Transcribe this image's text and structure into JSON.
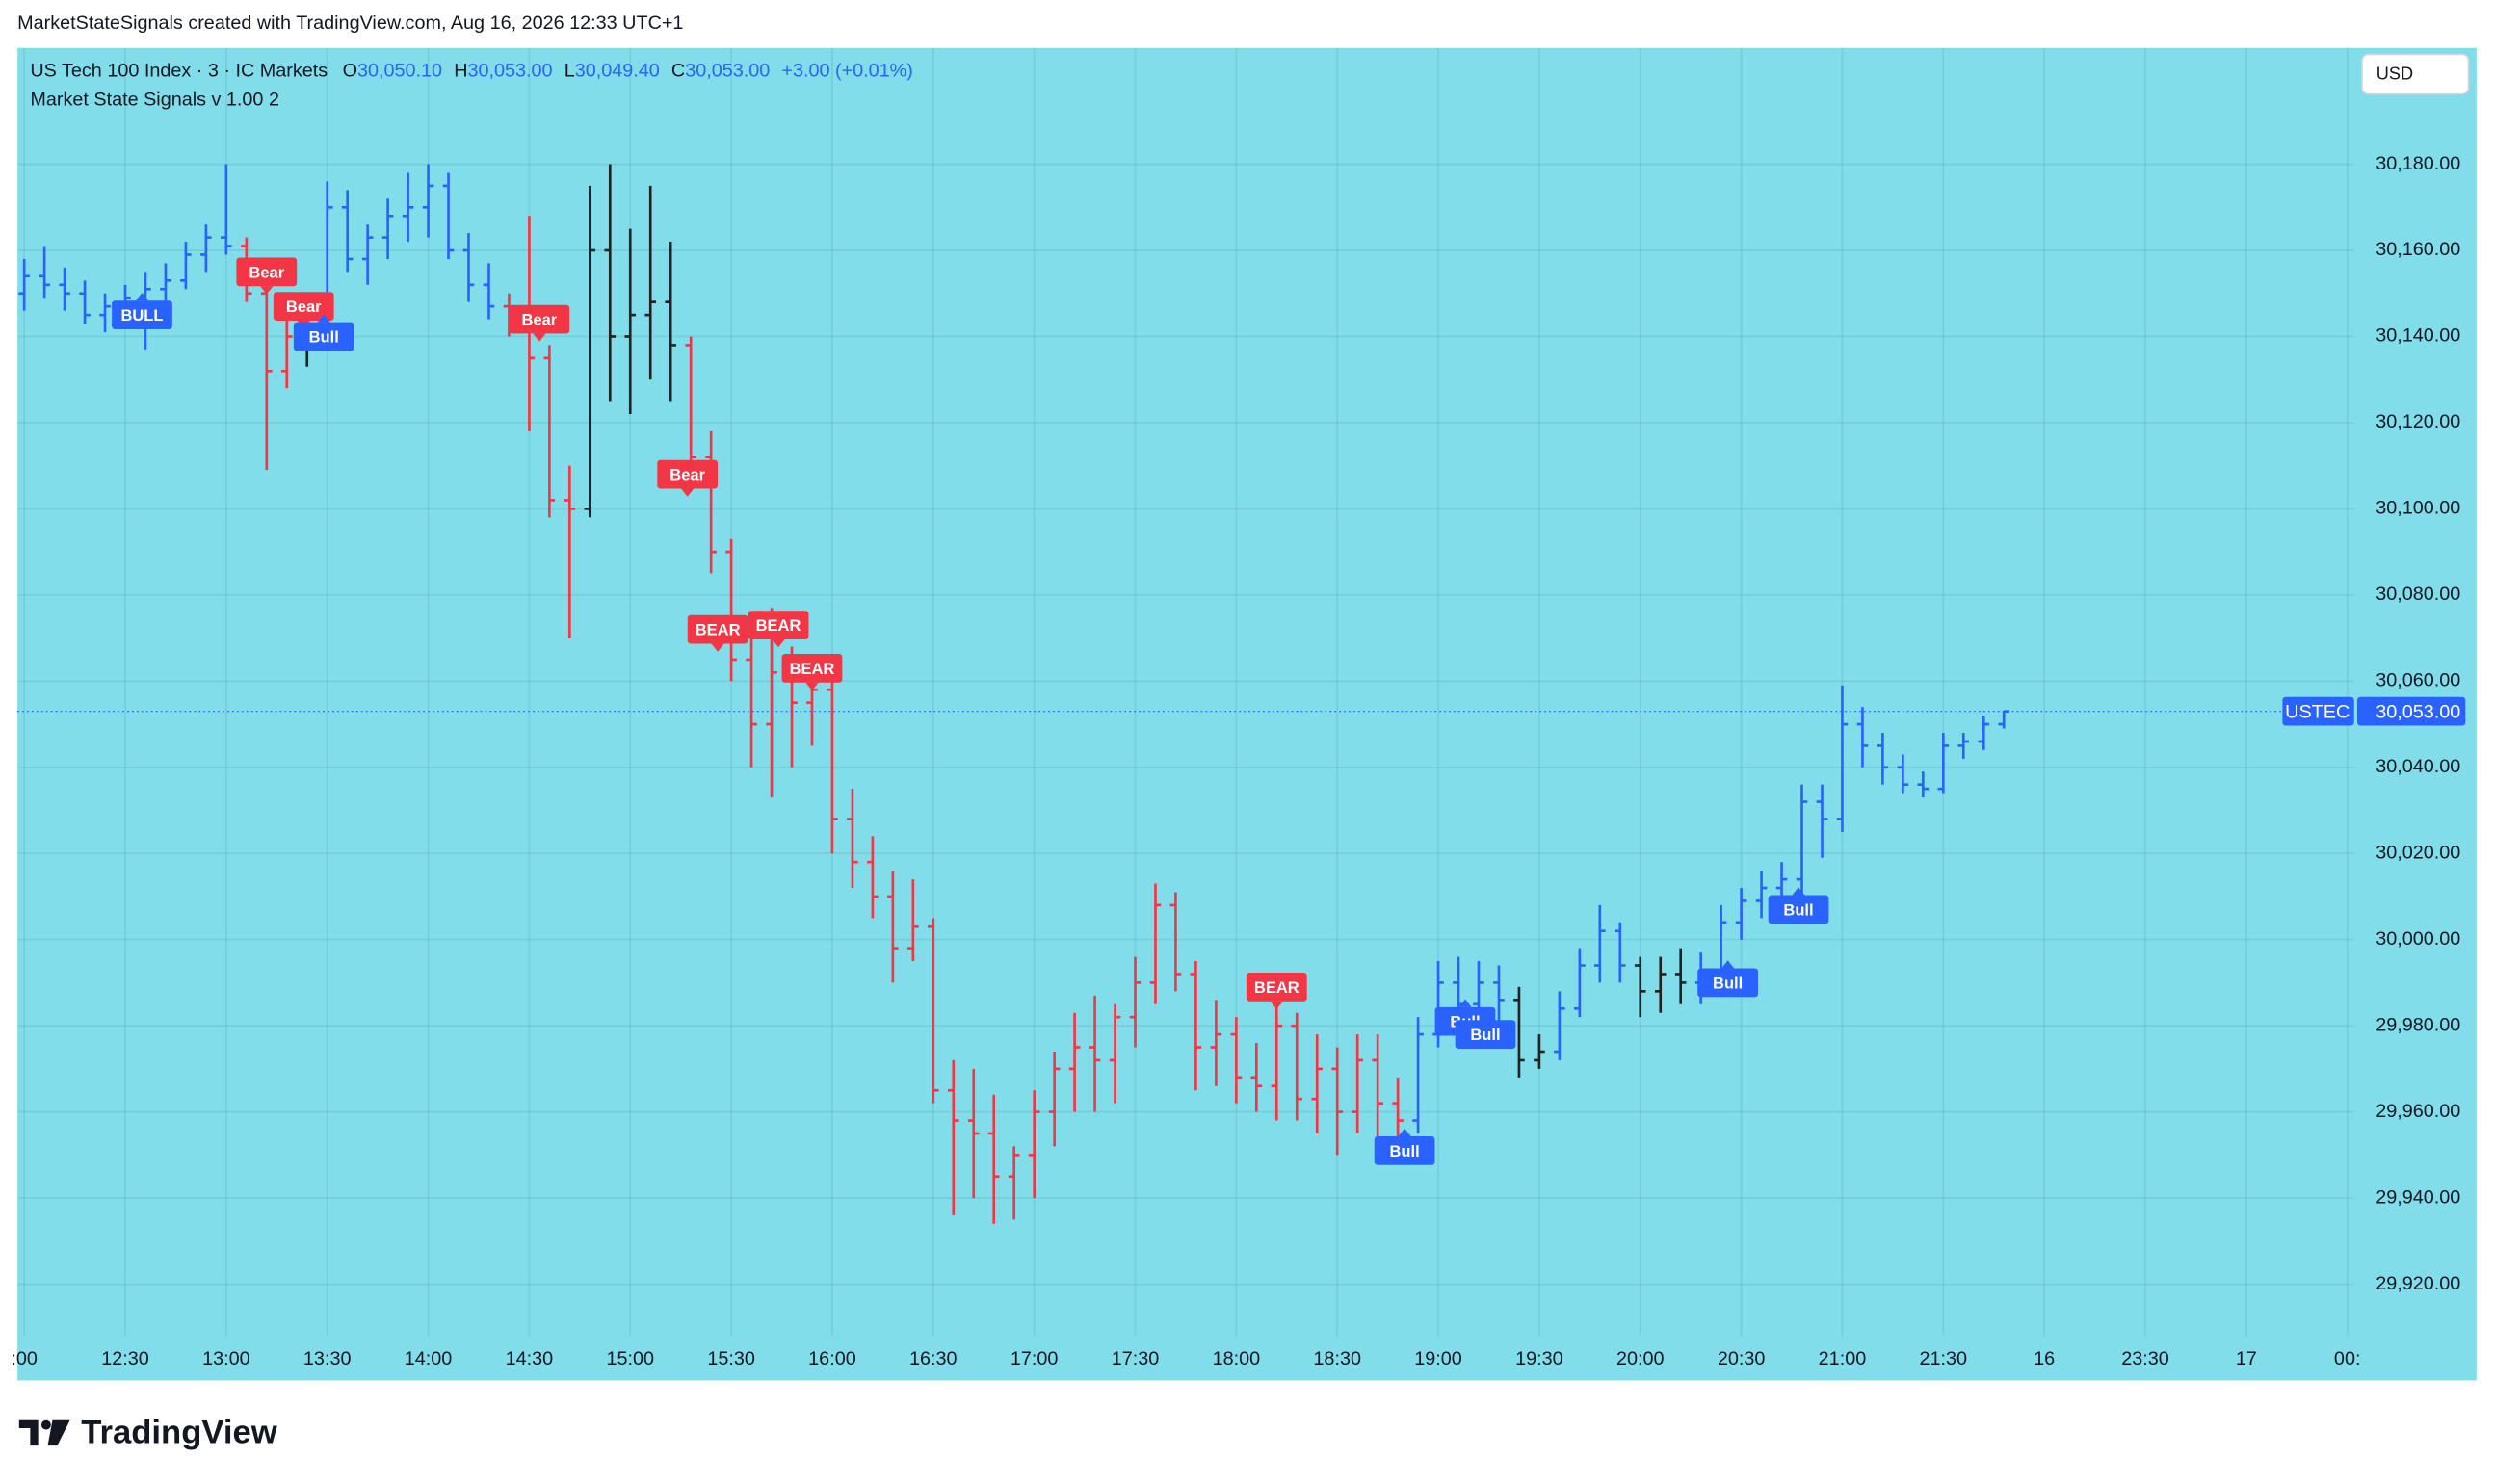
{
  "header": {
    "attribution": "MarketStateSignals created with TradingView.com, Aug 16, 2026 12:33 UTC+1"
  },
  "footer": {
    "logo": "TradingView"
  },
  "chart_data": {
    "type": "ohlc",
    "title": "US Tech 100 Index · 3 · IC Markets",
    "ohlc_legend": [
      {
        "label": "O",
        "value": "30,050.10"
      },
      {
        "label": "H",
        "value": "30,053.00"
      },
      {
        "label": "L",
        "value": "30,049.40"
      },
      {
        "label": "C",
        "value": "30,053.00"
      }
    ],
    "change": "+3.00 (+0.01%)",
    "indicator": "Market State Signals v 1.00 2",
    "currency": "USD",
    "symbol": "USTEC",
    "last_price": {
      "value": 30053,
      "label": "30,053.00"
    },
    "background": "#80dde9",
    "grid": true,
    "xlim": [
      -2,
      692
    ],
    "ylim": [
      29908,
      30207
    ],
    "xticks": [
      {
        "value": 0,
        "label": ":00"
      },
      {
        "value": 30,
        "label": "12:30"
      },
      {
        "value": 60,
        "label": "13:00"
      },
      {
        "value": 90,
        "label": "13:30"
      },
      {
        "value": 120,
        "label": "14:00"
      },
      {
        "value": 150,
        "label": "14:30"
      },
      {
        "value": 180,
        "label": "15:00"
      },
      {
        "value": 210,
        "label": "15:30"
      },
      {
        "value": 240,
        "label": "16:00"
      },
      {
        "value": 270,
        "label": "16:30"
      },
      {
        "value": 300,
        "label": "17:00"
      },
      {
        "value": 330,
        "label": "17:30"
      },
      {
        "value": 360,
        "label": "18:00"
      },
      {
        "value": 390,
        "label": "18:30"
      },
      {
        "value": 420,
        "label": "19:00"
      },
      {
        "value": 450,
        "label": "19:30"
      },
      {
        "value": 480,
        "label": "20:00"
      },
      {
        "value": 510,
        "label": "20:30"
      },
      {
        "value": 540,
        "label": "21:00"
      },
      {
        "value": 570,
        "label": "21:30"
      },
      {
        "value": 600,
        "label": "16"
      },
      {
        "value": 630,
        "label": "23:30"
      },
      {
        "value": 660,
        "label": "17"
      },
      {
        "value": 690,
        "label": "00:"
      }
    ],
    "yticks": [
      {
        "value": 29920,
        "label": "29,920.00"
      },
      {
        "value": 29940,
        "label": "29,940.00"
      },
      {
        "value": 29960,
        "label": "29,960.00"
      },
      {
        "value": 29980,
        "label": "29,980.00"
      },
      {
        "value": 30000,
        "label": "30,000.00"
      },
      {
        "value": 30020,
        "label": "30,020.00"
      },
      {
        "value": 30040,
        "label": "30,040.00"
      },
      {
        "value": 30060,
        "label": "30,060.00"
      },
      {
        "value": 30080,
        "label": "30,080.00"
      },
      {
        "value": 30100,
        "label": "30,100.00"
      },
      {
        "value": 30120,
        "label": "30,120.00"
      },
      {
        "value": 30140,
        "label": "30,140.00"
      },
      {
        "value": 30160,
        "label": "30,160.00"
      },
      {
        "value": 30180,
        "label": "30,180.00"
      }
    ],
    "x": [
      0,
      6,
      12,
      18,
      24,
      30,
      36,
      42,
      48,
      54,
      60,
      66,
      72,
      78,
      84,
      90,
      96,
      102,
      108,
      114,
      120,
      126,
      132,
      138,
      144,
      150,
      156,
      162,
      168,
      174,
      180,
      186,
      192,
      198,
      204,
      210,
      216,
      222,
      228,
      234,
      240,
      246,
      252,
      258,
      264,
      270,
      276,
      282,
      288,
      294,
      300,
      306,
      312,
      318,
      324,
      330,
      336,
      342,
      348,
      354,
      360,
      366,
      372,
      378,
      384,
      390,
      396,
      402,
      408,
      414,
      420,
      426,
      432,
      438,
      444,
      450,
      456,
      462,
      468,
      474,
      480,
      486,
      492,
      498,
      504,
      510,
      516,
      522,
      528,
      534,
      540,
      546,
      552,
      558,
      564,
      570,
      576,
      582,
      588
    ],
    "ohlc": [
      [
        30150,
        30158,
        30146,
        30154
      ],
      [
        30154,
        30161,
        30149,
        30152
      ],
      [
        30152,
        30156,
        30146,
        30150
      ],
      [
        30150,
        30153,
        30143,
        30145
      ],
      [
        30145,
        30150,
        30141,
        30147
      ],
      [
        30147,
        30152,
        30142,
        30149
      ],
      [
        30149,
        30155,
        30137,
        30151
      ],
      [
        30151,
        30157,
        30147,
        30153
      ],
      [
        30153,
        30162,
        30151,
        30159
      ],
      [
        30159,
        30166,
        30155,
        30163
      ],
      [
        30163,
        30180,
        30159,
        30161
      ],
      [
        30161,
        30163,
        30148,
        30150
      ],
      [
        30150,
        30156,
        30109,
        30132
      ],
      [
        30132,
        30147,
        30128,
        30140
      ],
      [
        30140,
        30150,
        30133,
        30143
      ],
      [
        30143,
        30176,
        30139,
        30170
      ],
      [
        30170,
        30174,
        30155,
        30158
      ],
      [
        30158,
        30166,
        30152,
        30163
      ],
      [
        30163,
        30172,
        30158,
        30168
      ],
      [
        30168,
        30178,
        30162,
        30170
      ],
      [
        30170,
        30180,
        30163,
        30175
      ],
      [
        30175,
        30178,
        30158,
        30160
      ],
      [
        30160,
        30164,
        30148,
        30152
      ],
      [
        30152,
        30157,
        30144,
        30147
      ],
      [
        30147,
        30150,
        30140,
        30142
      ],
      [
        30142,
        30168,
        30118,
        30135
      ],
      [
        30135,
        30138,
        30098,
        30102
      ],
      [
        30102,
        30110,
        30070,
        30100
      ],
      [
        30100,
        30175,
        30098,
        30160
      ],
      [
        30160,
        30180,
        30125,
        30140
      ],
      [
        30140,
        30165,
        30122,
        30145
      ],
      [
        30145,
        30175,
        30130,
        30148
      ],
      [
        30148,
        30162,
        30125,
        30138
      ],
      [
        30138,
        30140,
        30108,
        30112
      ],
      [
        30112,
        30118,
        30085,
        30090
      ],
      [
        30090,
        30093,
        30060,
        30065
      ],
      [
        30065,
        30072,
        30040,
        30050
      ],
      [
        30050,
        30077,
        30033,
        30062
      ],
      [
        30062,
        30068,
        30040,
        30055
      ],
      [
        30055,
        30066,
        30045,
        30058
      ],
      [
        30058,
        30060,
        30020,
        30028
      ],
      [
        30028,
        30035,
        30012,
        30018
      ],
      [
        30018,
        30024,
        30005,
        30010
      ],
      [
        30010,
        30016,
        29990,
        29998
      ],
      [
        29998,
        30014,
        29995,
        30003
      ],
      [
        30003,
        30005,
        29962,
        29965
      ],
      [
        29965,
        29972,
        29936,
        29958
      ],
      [
        29958,
        29970,
        29940,
        29955
      ],
      [
        29955,
        29964,
        29934,
        29945
      ],
      [
        29945,
        29952,
        29935,
        29950
      ],
      [
        29950,
        29965,
        29940,
        29960
      ],
      [
        29960,
        29974,
        29952,
        29970
      ],
      [
        29970,
        29983,
        29960,
        29975
      ],
      [
        29975,
        29987,
        29960,
        29972
      ],
      [
        29972,
        29985,
        29962,
        29982
      ],
      [
        29982,
        29996,
        29975,
        29990
      ],
      [
        29990,
        30013,
        29985,
        30008
      ],
      [
        30008,
        30011,
        29988,
        29992
      ],
      [
        29992,
        29995,
        29965,
        29975
      ],
      [
        29975,
        29986,
        29966,
        29978
      ],
      [
        29978,
        29982,
        29962,
        29968
      ],
      [
        29968,
        29976,
        29960,
        29966
      ],
      [
        29966,
        29985,
        29958,
        29980
      ],
      [
        29980,
        29983,
        29958,
        29963
      ],
      [
        29963,
        29978,
        29955,
        29970
      ],
      [
        29970,
        29975,
        29950,
        29960
      ],
      [
        29960,
        29978,
        29955,
        29972
      ],
      [
        29972,
        29978,
        29950,
        29962
      ],
      [
        29962,
        29968,
        29952,
        29958
      ],
      [
        29958,
        29982,
        29955,
        29978
      ],
      [
        29978,
        29995,
        29975,
        29990
      ],
      [
        29990,
        29996,
        29980,
        29985
      ],
      [
        29985,
        29995,
        29978,
        29990
      ],
      [
        29990,
        29994,
        29980,
        29986
      ],
      [
        29986,
        29989,
        29968,
        29972
      ],
      [
        29972,
        29978,
        29970,
        29974
      ],
      [
        29974,
        29988,
        29972,
        29984
      ],
      [
        29984,
        29998,
        29982,
        29994
      ],
      [
        29994,
        30008,
        29990,
        30002
      ],
      [
        30002,
        30004,
        29990,
        29994
      ],
      [
        29994,
        29996,
        29982,
        29988
      ],
      [
        29988,
        29996,
        29983,
        29992
      ],
      [
        29992,
        29998,
        29985,
        29990
      ],
      [
        29990,
        29997,
        29985,
        29993
      ],
      [
        29993,
        30008,
        29990,
        30004
      ],
      [
        30004,
        30012,
        30000,
        30009
      ],
      [
        30009,
        30016,
        30005,
        30012
      ],
      [
        30012,
        30018,
        30008,
        30014
      ],
      [
        30014,
        30036,
        30010,
        30032
      ],
      [
        30032,
        30036,
        30019,
        30028
      ],
      [
        30028,
        30059,
        30025,
        30050
      ],
      [
        30050,
        30054,
        30040,
        30045
      ],
      [
        30045,
        30048,
        30036,
        30040
      ],
      [
        30040,
        30043,
        30034,
        30036
      ],
      [
        30036,
        30039,
        30033,
        30035
      ],
      [
        30035,
        30048,
        30034,
        30045
      ],
      [
        30045,
        30048,
        30042,
        30046
      ],
      [
        30046,
        30052,
        30044,
        30050
      ],
      [
        30050,
        30053,
        30049,
        30053
      ]
    ],
    "bar_colors": [
      "#2962ff",
      "#2962ff",
      "#2962ff",
      "#2962ff",
      "#2962ff",
      "#2962ff",
      "#2962ff",
      "#2962ff",
      "#2962ff",
      "#2962ff",
      "#2962ff",
      "#f23645",
      "#f23645",
      "#f23645",
      "#222222",
      "#2962ff",
      "#2962ff",
      "#2962ff",
      "#2962ff",
      "#2962ff",
      "#2962ff",
      "#2962ff",
      "#2962ff",
      "#2962ff",
      "#f23645",
      "#f23645",
      "#f23645",
      "#f23645",
      "#222222",
      "#222222",
      "#222222",
      "#222222",
      "#222222",
      "#f23645",
      "#f23645",
      "#f23645",
      "#f23645",
      "#f23645",
      "#f23645",
      "#f23645",
      "#f23645",
      "#f23645",
      "#f23645",
      "#f23645",
      "#f23645",
      "#f23645",
      "#f23645",
      "#f23645",
      "#f23645",
      "#f23645",
      "#f23645",
      "#f23645",
      "#f23645",
      "#f23645",
      "#f23645",
      "#f23645",
      "#f23645",
      "#f23645",
      "#f23645",
      "#f23645",
      "#f23645",
      "#f23645",
      "#f23645",
      "#f23645",
      "#f23645",
      "#f23645",
      "#f23645",
      "#f23645",
      "#f23645",
      "#2962ff",
      "#2962ff",
      "#2962ff",
      "#2962ff",
      "#2962ff",
      "#222222",
      "#222222",
      "#2962ff",
      "#2962ff",
      "#2962ff",
      "#2962ff",
      "#222222",
      "#222222",
      "#222222",
      "#2962ff",
      "#2962ff",
      "#2962ff",
      "#2962ff",
      "#2962ff",
      "#2962ff",
      "#2962ff",
      "#2962ff",
      "#2962ff",
      "#2962ff",
      "#2962ff",
      "#2962ff",
      "#2962ff",
      "#2962ff",
      "#2962ff",
      "#2962ff"
    ],
    "signals": [
      {
        "label": "BULL",
        "x": 35,
        "y": 30145,
        "color": "#2962ff"
      },
      {
        "label": "Bear",
        "x": 72,
        "y": 30155,
        "color": "#f23645"
      },
      {
        "label": "Bear",
        "x": 83,
        "y": 30147,
        "color": "#f23645"
      },
      {
        "label": "Bull",
        "x": 89,
        "y": 30140,
        "color": "#2962ff"
      },
      {
        "label": "Bear",
        "x": 153,
        "y": 30144,
        "color": "#f23645"
      },
      {
        "label": "Bear",
        "x": 197,
        "y": 30108,
        "color": "#f23645"
      },
      {
        "label": "BEAR",
        "x": 206,
        "y": 30072,
        "color": "#f23645"
      },
      {
        "label": "BEAR",
        "x": 224,
        "y": 30073,
        "color": "#f23645"
      },
      {
        "label": "BEAR",
        "x": 234,
        "y": 30063,
        "color": "#f23645"
      },
      {
        "label": "BEAR",
        "x": 372,
        "y": 29989,
        "color": "#f23645"
      },
      {
        "label": "Bull",
        "x": 410,
        "y": 29951,
        "color": "#2962ff"
      },
      {
        "label": "Bull",
        "x": 428,
        "y": 29981,
        "color": "#2962ff"
      },
      {
        "label": "Bull",
        "x": 434,
        "y": 29978,
        "color": "#2962ff"
      },
      {
        "label": "Bull",
        "x": 506,
        "y": 29990,
        "color": "#2962ff"
      },
      {
        "label": "Bull",
        "x": 527,
        "y": 30007,
        "color": "#2962ff"
      }
    ]
  }
}
